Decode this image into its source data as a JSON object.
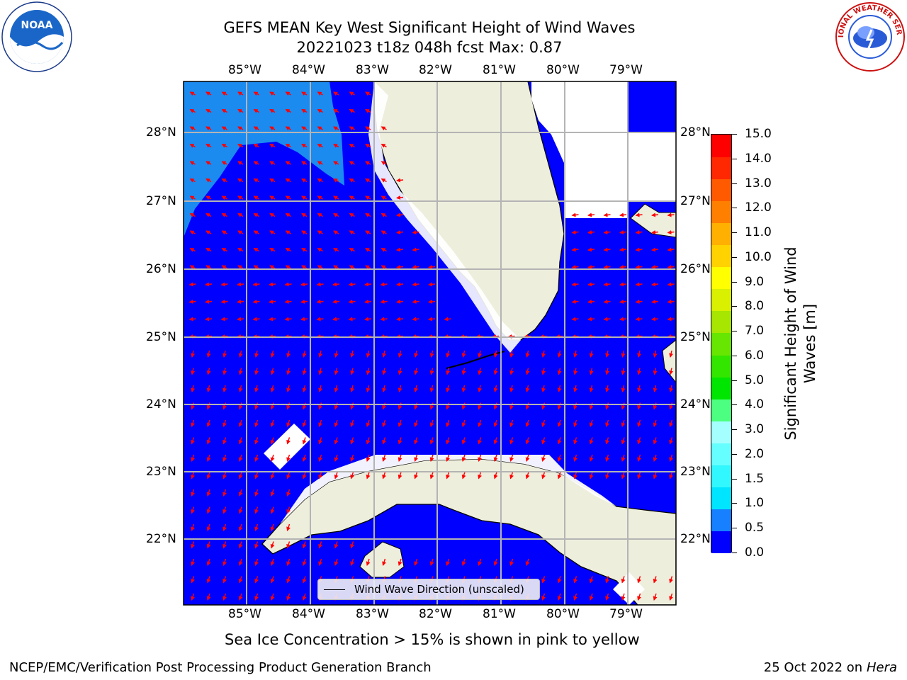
{
  "title": {
    "line1": "GEFS MEAN Key West Significant Height of Wind Waves",
    "line2": "20221023 t18z 048h fcst   Max: 0.87"
  },
  "map": {
    "lon_ticks": [
      "85°W",
      "84°W",
      "83°W",
      "82°W",
      "81°W",
      "80°W",
      "79°W"
    ],
    "lat_ticks": [
      "28°N",
      "27°N",
      "26°N",
      "25°N",
      "24°N",
      "23°N",
      "22°N"
    ],
    "legend_label": "Wind Wave Direction (unscaled)",
    "colors": {
      "ocean_low": "#0000ff",
      "ocean_mid": "#1b8bf0",
      "land": "#eeeedd",
      "arrow": "#ff0000",
      "grid": "#b4b4b4"
    }
  },
  "logos": {
    "noaa_text": "NOAA",
    "nws_text": "NATIONAL WEATHER SERVICE"
  },
  "colorbar": {
    "label_line1": "Significant Height of Wind",
    "label_line2": "Waves [m]",
    "ticks": [
      "15.0",
      "14.0",
      "13.0",
      "12.0",
      "11.0",
      "10.0",
      "9.0",
      "8.0",
      "7.0",
      "6.0",
      "5.0",
      "4.0",
      "3.0",
      "2.0",
      "1.5",
      "1.0",
      "0.5",
      "0.0"
    ],
    "colors": [
      "#0000ff",
      "#1680ff",
      "#00e5ff",
      "#31f7ff",
      "#66ffff",
      "#a4ffff",
      "#4dff80",
      "#00e600",
      "#33e600",
      "#66e600",
      "#a6e600",
      "#d9f000",
      "#ffff00",
      "#ffd200",
      "#ffb000",
      "#ff8000",
      "#ff5a00",
      "#ff2800",
      "#ff0000"
    ]
  },
  "sea_ice_note": "Sea Ice Concentration > 15% is shown in pink to yellow",
  "footer": {
    "left": "NCEP/EMC/Verification Post Processing Product Generation Branch",
    "date": "25 Oct 2022 on ",
    "machine": "Hera"
  }
}
